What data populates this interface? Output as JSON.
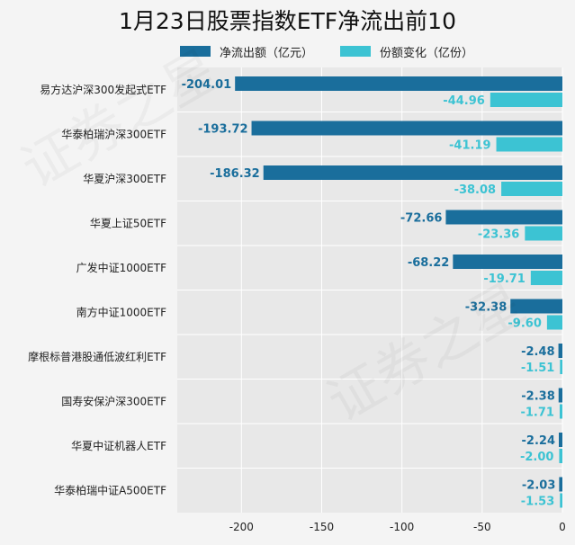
{
  "legend": {
    "net_outflow": "净流出额（亿元）",
    "share_change": "份额变化（亿份）"
  },
  "colors": {
    "net_outflow": "#1a6e9c",
    "share_change": "#3cc3d3",
    "plot_bg": "#e8e8e8",
    "grid": "#ffffff"
  },
  "chart_data": {
    "type": "bar",
    "orientation": "horizontal",
    "title": "1月23日股票指数ETF净流出前10",
    "categories": [
      "易方达沪深300发起式ETF",
      "华泰柏瑞沪深300ETF",
      "华夏沪深300ETF",
      "华夏上证50ETF",
      "广发中证1000ETF",
      "南方中证1000ETF",
      "摩根标普港股通低波红利ETF",
      "国寿安保沪深300ETF",
      "华夏中证机器人ETF",
      "华泰柏瑞中证A500ETF"
    ],
    "series": [
      {
        "name": "净流出额（亿元）",
        "values": [
          -204.01,
          -193.72,
          -186.32,
          -72.66,
          -68.22,
          -32.38,
          -2.48,
          -2.38,
          -2.24,
          -2.03
        ],
        "labels": [
          "-204.01",
          "-193.72",
          "-186.32",
          "-72.66",
          "-68.22",
          "-32.38",
          "-2.48",
          "-2.38",
          "-2.24",
          "-2.03"
        ]
      },
      {
        "name": "份额变化（亿份）",
        "values": [
          -44.96,
          -41.19,
          -38.08,
          -23.36,
          -19.71,
          -9.6,
          -1.51,
          -1.71,
          -2.0,
          -1.53
        ],
        "labels": [
          "-44.96",
          "-41.19",
          "-38.08",
          "-23.36",
          "-19.71",
          "-9.60",
          "-1.51",
          "-1.71",
          "-2.00",
          "-1.53"
        ]
      }
    ],
    "xlim": [
      -240,
      0
    ],
    "xticks": [
      -200,
      -150,
      -100,
      -50,
      0
    ],
    "xtick_labels": [
      "-200",
      "-150",
      "-100",
      "-50",
      "0"
    ],
    "xlabel": "",
    "ylabel": "",
    "grid": true,
    "legend_position": "top"
  },
  "watermark": "证券之星"
}
